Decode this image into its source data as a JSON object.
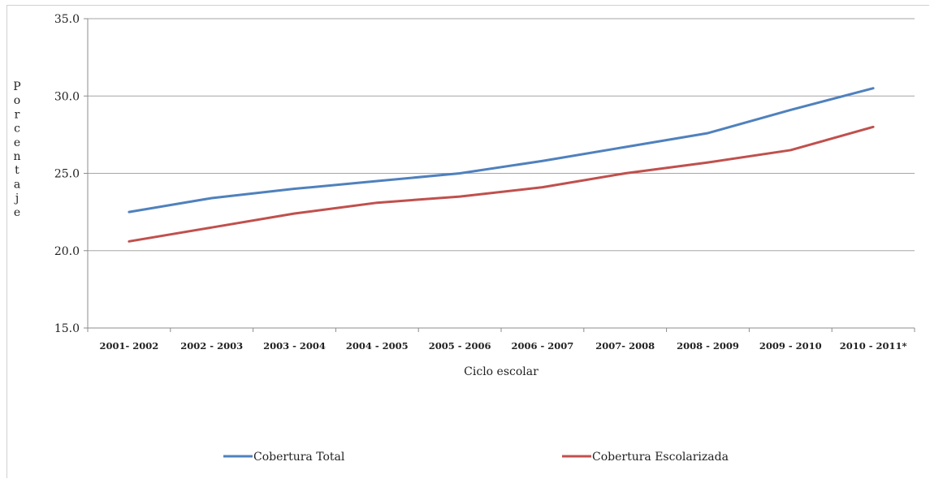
{
  "chart_data": {
    "type": "line",
    "title": "",
    "xlabel": "Ciclo escolar",
    "ylabel": "Porcentaje",
    "ylim": [
      15,
      35
    ],
    "yticks": [
      "15.0",
      "20.0",
      "25.0",
      "30.0",
      "35.0"
    ],
    "ytick_values": [
      15,
      20,
      25,
      30,
      35
    ],
    "grid": true,
    "legend": "bottom",
    "categories": [
      "2001-2002",
      "2002-2003",
      "2003-2004",
      "2004-2005",
      "2005-2006",
      "2006-2007",
      "2007-2008",
      "2008-2009",
      "2009-2010",
      "2010-2011*"
    ],
    "category_labels": [
      "2001- 2002",
      "2002 - 2003",
      "2003 - 2004",
      "2004 - 2005",
      "2005 - 2006",
      "2006 - 2007",
      "2007- 2008",
      "2008 - 2009",
      "2009 - 2010",
      "2010 - 2011*"
    ],
    "series": [
      {
        "name": "Cobertura Total",
        "color": "#4f81bd",
        "values": [
          22.5,
          23.4,
          24.0,
          24.5,
          25.0,
          25.8,
          26.7,
          27.6,
          29.1,
          30.5
        ]
      },
      {
        "name": "Cobertura Escolarizada",
        "color": "#c0504d",
        "values": [
          20.6,
          21.5,
          22.4,
          23.1,
          23.5,
          24.1,
          25.0,
          25.7,
          26.5,
          28.0
        ]
      }
    ]
  }
}
